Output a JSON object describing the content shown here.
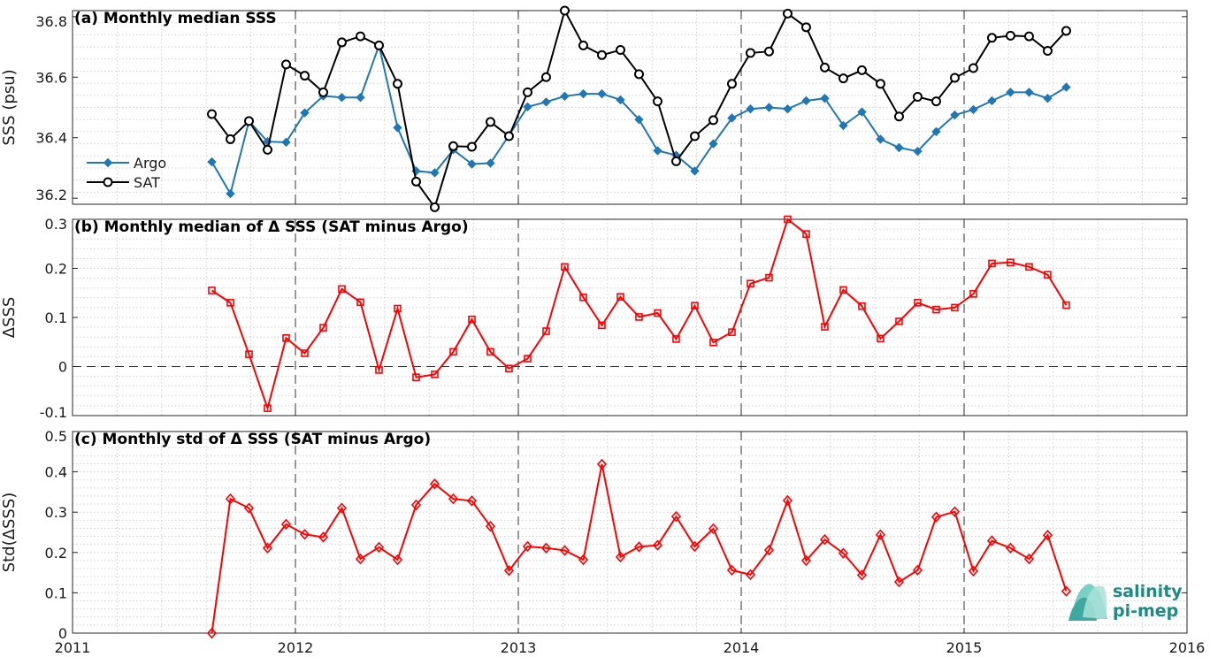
{
  "chart_data": [
    {
      "type": "line",
      "title": "(a) Monthly median SSS",
      "ylabel": "SSS (psu)",
      "ylim": [
        36.18,
        36.82
      ],
      "yticks": [
        "36.2",
        "36.4",
        "36.6",
        "36.8"
      ],
      "xlim": [
        2011,
        2016
      ],
      "legend_position": "left",
      "series": [
        {
          "name": "Argo",
          "color": "#1f77b4",
          "marker": "diamond-filled",
          "values": [
            36.32,
            36.215,
            36.455,
            36.387,
            36.385,
            36.482,
            36.538,
            36.533,
            36.533,
            36.705,
            36.433,
            36.29,
            36.284,
            36.36,
            36.313,
            36.316,
            36.408,
            36.502,
            36.518,
            36.537,
            36.545,
            36.545,
            36.525,
            36.46,
            36.357,
            36.342,
            36.29,
            36.38,
            36.465,
            36.495,
            36.5,
            36.495,
            36.522,
            36.53,
            36.44,
            36.485,
            36.395,
            36.367,
            36.355,
            36.42,
            36.475,
            36.493,
            36.522,
            36.55,
            36.55,
            36.53,
            36.567
          ]
        },
        {
          "name": "SAT",
          "color": "#000000",
          "marker": "circle-open",
          "values": [
            36.478,
            36.395,
            36.455,
            36.36,
            36.642,
            36.605,
            36.55,
            36.715,
            36.735,
            36.705,
            36.578,
            36.255,
            36.17,
            36.372,
            36.37,
            36.452,
            36.405,
            36.55,
            36.6,
            36.82,
            36.705,
            36.673,
            36.69,
            36.61,
            36.52,
            36.322,
            36.405,
            36.458,
            36.578,
            36.68,
            36.685,
            36.81,
            36.765,
            36.632,
            36.596,
            36.623,
            36.578,
            36.47,
            36.535,
            36.52,
            36.598,
            36.63,
            36.73,
            36.737,
            36.735,
            36.687,
            36.753
          ]
        }
      ]
    },
    {
      "type": "line",
      "title": "(b) Monthly median of Δ SSS (SAT minus Argo)",
      "ylabel": "ΔSSS",
      "ylim": [
        -0.1,
        0.3
      ],
      "yticks": [
        "-0.1",
        "0",
        "0.1",
        "0.2",
        "0.3"
      ],
      "xlim": [
        2011,
        2016
      ],
      "series": [
        {
          "color": "#ff0000",
          "marker": "square-open",
          "values": [
            0.155,
            0.13,
            0.025,
            -0.085,
            0.058,
            0.027,
            0.079,
            0.158,
            0.131,
            -0.007,
            0.118,
            -0.022,
            -0.016,
            0.03,
            0.096,
            0.03,
            -0.004,
            0.016,
            0.072,
            0.203,
            0.141,
            0.084,
            0.142,
            0.101,
            0.109,
            0.056,
            0.124,
            0.049,
            0.07,
            0.169,
            0.181,
            0.3,
            0.27,
            0.081,
            0.156,
            0.123,
            0.057,
            0.092,
            0.13,
            0.116,
            0.12,
            0.148,
            0.21,
            0.212,
            0.203,
            0.187,
            0.125
          ]
        }
      ]
    },
    {
      "type": "line",
      "title": "(c) Monthly std of Δ SSS (SAT minus Argo)",
      "ylabel": "Std(ΔSSS)",
      "ylim": [
        0,
        0.5
      ],
      "yticks": [
        "0",
        "0.1",
        "0.2",
        "0.3",
        "0.4",
        "0.5"
      ],
      "xlim": [
        2011,
        2016
      ],
      "xticks": [
        "2011",
        "2012",
        "2013",
        "2014",
        "2015",
        "2016"
      ],
      "series": [
        {
          "color": "#ff0000",
          "marker": "diamond-open",
          "values": [
            0.0,
            0.333,
            0.31,
            0.211,
            0.27,
            0.245,
            0.238,
            0.31,
            0.184,
            0.213,
            0.182,
            0.318,
            0.37,
            0.333,
            0.328,
            0.265,
            0.155,
            0.215,
            0.211,
            0.205,
            0.182,
            0.419,
            0.189,
            0.214,
            0.218,
            0.289,
            0.215,
            0.259,
            0.156,
            0.145,
            0.206,
            0.329,
            0.18,
            0.232,
            0.198,
            0.144,
            0.244,
            0.127,
            0.156,
            0.288,
            0.301,
            0.154,
            0.229,
            0.211,
            0.184,
            0.243,
            0.104
          ]
        }
      ]
    }
  ],
  "x_start": 2011.625,
  "x_step": 0.08333,
  "logo": {
    "line1": "salinity",
    "line2": "pi-mep"
  }
}
